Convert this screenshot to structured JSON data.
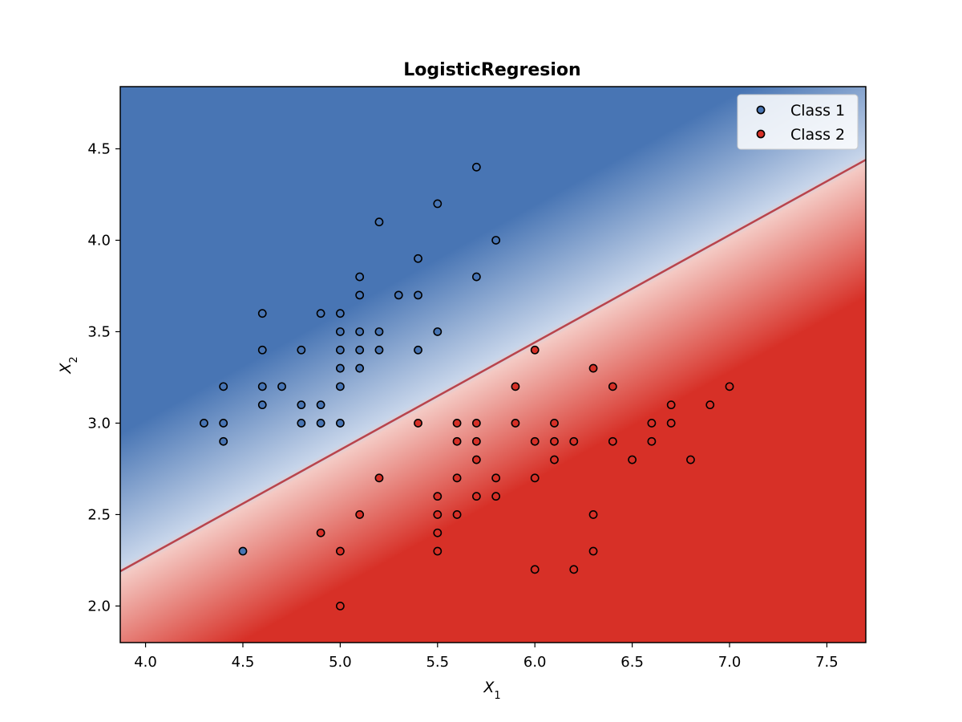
{
  "chart_data": {
    "type": "scatter",
    "title": "LogisticRegresion",
    "xlabel": {
      "base": "X",
      "sub": "1"
    },
    "ylabel": {
      "base": "X",
      "sub": "2"
    },
    "xlim": [
      3.87,
      7.7
    ],
    "ylim": [
      1.8,
      4.84
    ],
    "xticks": [
      4.0,
      4.5,
      5.0,
      5.5,
      6.0,
      6.5,
      7.0,
      7.5
    ],
    "xtick_labels": [
      "4.0",
      "4.5",
      "5.0",
      "5.5",
      "6.0",
      "6.5",
      "7.0",
      "7.5"
    ],
    "yticks": [
      2.0,
      2.5,
      3.0,
      3.5,
      4.0,
      4.5
    ],
    "ytick_labels": [
      "2.0",
      "2.5",
      "3.0",
      "3.5",
      "4.0",
      "4.5"
    ],
    "grid": false,
    "legend_position": "top-right",
    "decision_boundary": {
      "points": [
        [
          3.87,
          2.19
        ],
        [
          7.7,
          4.44
        ]
      ],
      "line_color": "#b9444c"
    },
    "background_colors": {
      "class1": "#4875b4",
      "class2": "#d73027",
      "mid": "#f7f7f7"
    },
    "series": [
      {
        "name": "Class 1",
        "color": "#4875b4",
        "points": [
          [
            4.3,
            3.0
          ],
          [
            4.4,
            3.2
          ],
          [
            4.4,
            3.0
          ],
          [
            4.4,
            2.9
          ],
          [
            4.5,
            2.3
          ],
          [
            4.6,
            3.6
          ],
          [
            4.6,
            3.4
          ],
          [
            4.6,
            3.2
          ],
          [
            4.6,
            3.1
          ],
          [
            4.7,
            3.2
          ],
          [
            4.8,
            3.4
          ],
          [
            4.8,
            3.1
          ],
          [
            4.8,
            3.0
          ],
          [
            4.9,
            3.6
          ],
          [
            4.9,
            3.1
          ],
          [
            4.9,
            3.0
          ],
          [
            5.0,
            3.6
          ],
          [
            5.0,
            3.5
          ],
          [
            5.0,
            3.4
          ],
          [
            5.0,
            3.3
          ],
          [
            5.0,
            3.2
          ],
          [
            5.0,
            3.0
          ],
          [
            5.1,
            3.8
          ],
          [
            5.1,
            3.7
          ],
          [
            5.1,
            3.5
          ],
          [
            5.1,
            3.4
          ],
          [
            5.1,
            3.3
          ],
          [
            5.2,
            4.1
          ],
          [
            5.2,
            3.5
          ],
          [
            5.2,
            3.4
          ],
          [
            5.3,
            3.7
          ],
          [
            5.4,
            3.9
          ],
          [
            5.4,
            3.7
          ],
          [
            5.4,
            3.4
          ],
          [
            5.5,
            4.2
          ],
          [
            5.5,
            3.5
          ],
          [
            5.7,
            4.4
          ],
          [
            5.7,
            3.8
          ],
          [
            5.8,
            4.0
          ]
        ]
      },
      {
        "name": "Class 2",
        "color": "#d73027",
        "points": [
          [
            4.9,
            2.4
          ],
          [
            5.0,
            2.3
          ],
          [
            5.0,
            2.0
          ],
          [
            5.1,
            2.5
          ],
          [
            5.2,
            2.7
          ],
          [
            5.4,
            3.0
          ],
          [
            5.5,
            2.6
          ],
          [
            5.5,
            2.5
          ],
          [
            5.5,
            2.4
          ],
          [
            5.5,
            2.3
          ],
          [
            5.6,
            3.0
          ],
          [
            5.6,
            2.9
          ],
          [
            5.6,
            2.7
          ],
          [
            5.6,
            2.5
          ],
          [
            5.7,
            3.0
          ],
          [
            5.7,
            2.9
          ],
          [
            5.7,
            2.8
          ],
          [
            5.7,
            2.6
          ],
          [
            5.8,
            2.7
          ],
          [
            5.8,
            2.6
          ],
          [
            5.9,
            3.2
          ],
          [
            5.9,
            3.0
          ],
          [
            6.0,
            3.4
          ],
          [
            6.0,
            2.9
          ],
          [
            6.0,
            2.7
          ],
          [
            6.0,
            2.2
          ],
          [
            6.1,
            3.0
          ],
          [
            6.1,
            2.9
          ],
          [
            6.1,
            2.8
          ],
          [
            6.2,
            2.9
          ],
          [
            6.2,
            2.2
          ],
          [
            6.3,
            3.3
          ],
          [
            6.3,
            2.5
          ],
          [
            6.3,
            2.3
          ],
          [
            6.4,
            3.2
          ],
          [
            6.4,
            2.9
          ],
          [
            6.5,
            2.8
          ],
          [
            6.6,
            3.0
          ],
          [
            6.6,
            2.9
          ],
          [
            6.7,
            3.1
          ],
          [
            6.7,
            3.0
          ],
          [
            6.8,
            2.8
          ],
          [
            6.9,
            3.1
          ],
          [
            7.0,
            3.2
          ]
        ]
      }
    ]
  }
}
